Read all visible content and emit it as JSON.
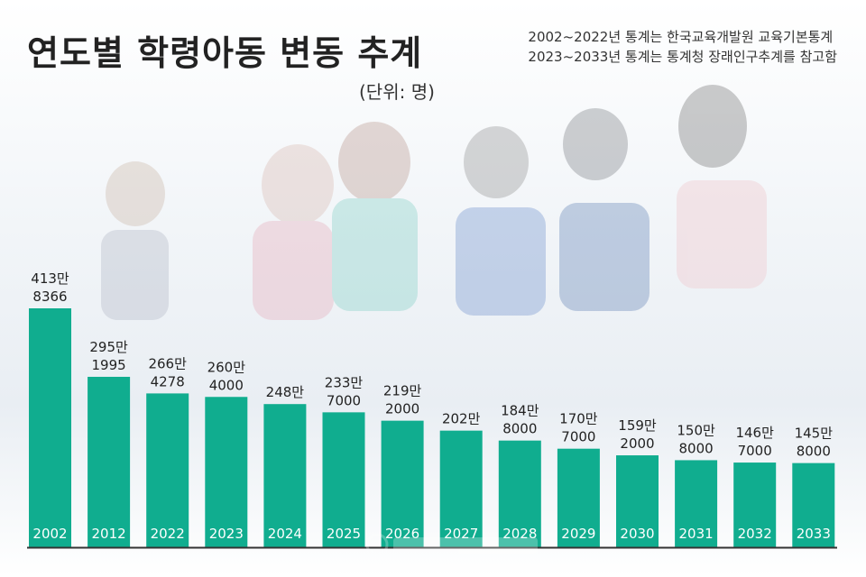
{
  "title": "연도별 학령아동 변동 추계",
  "unit": "(단위: 명)",
  "source_lines": [
    "2002~2022년 통계는 한국교육개발원 교육기본통계",
    "2023~2033년 통계는 통계청 장래인구추계를 참고함"
  ],
  "watermark": "뉴스 통신 로고",
  "colors": {
    "bar": "#10ad8f",
    "axis": "#333333",
    "year_text": "#ffffff"
  },
  "chart_data": {
    "type": "bar",
    "title": "연도별 학령아동 변동 추계",
    "xlabel": "",
    "ylabel": "",
    "unit": "명",
    "ylim": [
      0,
      4500000
    ],
    "grid": false,
    "categories": [
      "2002",
      "2012",
      "2022",
      "2023",
      "2024",
      "2025",
      "2026",
      "2027",
      "2028",
      "2029",
      "2030",
      "2031",
      "2032",
      "2033"
    ],
    "values": [
      4138366,
      2951995,
      2664278,
      2604000,
      2480000,
      2337000,
      2192000,
      2020000,
      1848000,
      1707000,
      1592000,
      1508000,
      1467000,
      1458000
    ],
    "labels": [
      [
        "413만",
        "8366"
      ],
      [
        "295만",
        "1995"
      ],
      [
        "266만",
        "4278"
      ],
      [
        "260만",
        "4000"
      ],
      [
        "248만"
      ],
      [
        "233만",
        "7000"
      ],
      [
        "219만",
        "2000"
      ],
      [
        "202만"
      ],
      [
        "184만",
        "8000"
      ],
      [
        "170만",
        "7000"
      ],
      [
        "159만",
        "2000"
      ],
      [
        "150만",
        "8000"
      ],
      [
        "146만",
        "7000"
      ],
      [
        "145만",
        "8000"
      ]
    ]
  }
}
